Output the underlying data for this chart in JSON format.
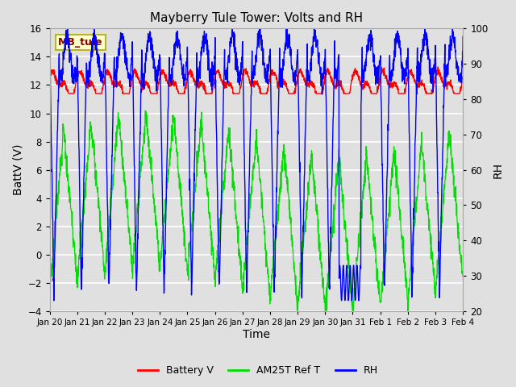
{
  "title": "Mayberry Tule Tower: Volts and RH",
  "xlabel": "Time",
  "ylabel_left": "BattV (V)",
  "ylabel_right": "RH",
  "station_label": "MB_tule",
  "ylim_left": [
    -4,
    16
  ],
  "ylim_right": [
    20,
    100
  ],
  "yticks_left": [
    -4,
    -2,
    0,
    2,
    4,
    6,
    8,
    10,
    12,
    14,
    16
  ],
  "yticks_right": [
    20,
    30,
    40,
    50,
    60,
    70,
    80,
    90,
    100
  ],
  "xtick_labels": [
    "Jan 20",
    "Jan 21",
    "Jan 22",
    "Jan 23",
    "Jan 24",
    "Jan 25",
    "Jan 26",
    "Jan 27",
    "Jan 28",
    "Jan 29",
    "Jan 30",
    "Jan 31",
    "Feb 1",
    "Feb 2",
    "Feb 3",
    "Feb 4"
  ],
  "bg_color": "#e0e0e0",
  "grid_color": "white",
  "line_battv_color": "red",
  "line_am25t_color": "#00dd00",
  "line_rh_color": "blue",
  "legend_labels": [
    "Battery V",
    "AM25T Ref T",
    "RH"
  ],
  "legend_colors": [
    "red",
    "#00dd00",
    "blue"
  ],
  "figsize": [
    6.4,
    4.8
  ],
  "dpi": 100
}
